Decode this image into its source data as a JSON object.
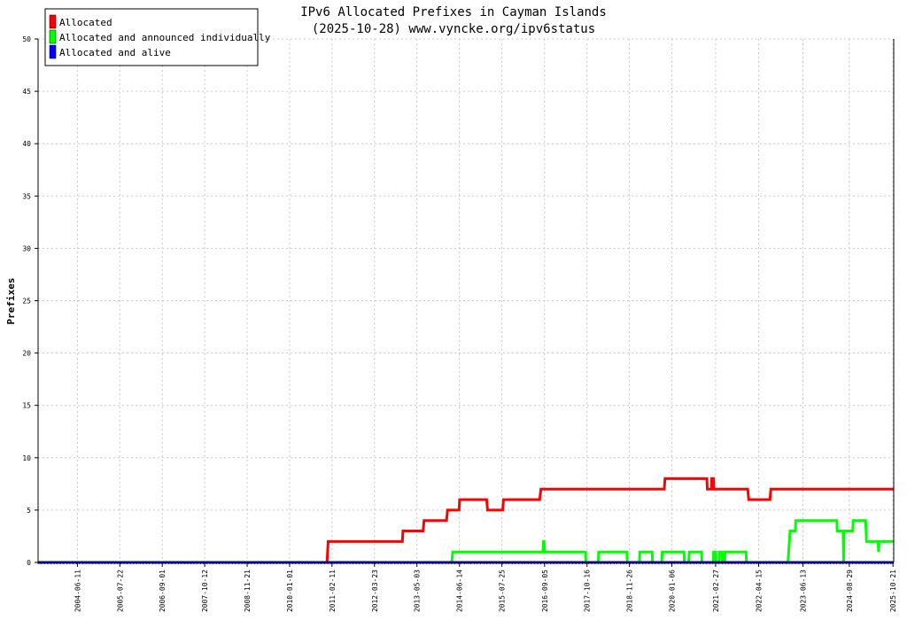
{
  "chart_data": {
    "type": "line",
    "title": "IPv6 Allocated Prefixes in Cayman Islands",
    "subtitle": "(2025-10-28) www.vyncke.org/ipv6status",
    "xlabel": "",
    "ylabel": "Prefixes",
    "ylim": [
      0,
      50
    ],
    "yticks": [
      0,
      5,
      10,
      15,
      20,
      25,
      30,
      35,
      40,
      45,
      50
    ],
    "xlim": [
      "2003-06-01",
      "2025-10-28"
    ],
    "xticks": [
      "2004-06-11",
      "2005-07-22",
      "2006-09-01",
      "2007-10-12",
      "2008-11-21",
      "2010-01-01",
      "2011-02-11",
      "2012-03-23",
      "2013-05-03",
      "2014-06-14",
      "2015-07-25",
      "2016-09-05",
      "2017-10-16",
      "2018-11-26",
      "2020-01-06",
      "2021-02-27",
      "2022-04-15",
      "2023-06-13",
      "2024-08-29",
      "2025-10-21"
    ],
    "grid": true,
    "legend_position": "top-left",
    "series": [
      {
        "name": "Allocated",
        "color": "#ff0000",
        "points": [
          [
            "2003-06-01",
            0
          ],
          [
            "2010-12-25",
            0
          ],
          [
            "2011-01-05",
            2
          ],
          [
            "2012-12-15",
            2
          ],
          [
            "2012-12-20",
            3
          ],
          [
            "2013-07-01",
            3
          ],
          [
            "2013-07-10",
            4
          ],
          [
            "2014-02-10",
            4
          ],
          [
            "2014-02-20",
            5
          ],
          [
            "2014-06-10",
            5
          ],
          [
            "2014-06-15",
            6
          ],
          [
            "2015-03-01",
            6
          ],
          [
            "2015-03-10",
            5
          ],
          [
            "2015-08-01",
            5
          ],
          [
            "2015-08-10",
            6
          ],
          [
            "2016-07-20",
            6
          ],
          [
            "2016-08-01",
            7
          ],
          [
            "2019-10-25",
            7
          ],
          [
            "2019-11-01",
            8
          ],
          [
            "2020-12-05",
            8
          ],
          [
            "2020-12-10",
            7
          ],
          [
            "2021-01-18",
            7
          ],
          [
            "2021-01-20",
            8
          ],
          [
            "2021-02-06",
            8
          ],
          [
            "2021-02-08",
            7
          ],
          [
            "2022-01-01",
            7
          ],
          [
            "2022-01-10",
            6
          ],
          [
            "2022-08-01",
            6
          ],
          [
            "2022-08-10",
            7
          ],
          [
            "2025-10-28",
            7
          ]
        ]
      },
      {
        "name": "Allocated and announced individually",
        "color": "#00ff00",
        "points": [
          [
            "2003-06-01",
            0
          ],
          [
            "2014-04-01",
            0
          ],
          [
            "2014-04-10",
            1
          ],
          [
            "2016-08-20",
            1
          ],
          [
            "2016-08-25",
            2
          ],
          [
            "2016-09-01",
            2
          ],
          [
            "2016-09-05",
            1
          ],
          [
            "2017-10-01",
            1
          ],
          [
            "2017-10-05",
            0
          ],
          [
            "2018-02-01",
            0
          ],
          [
            "2018-02-05",
            1
          ],
          [
            "2018-11-01",
            1
          ],
          [
            "2018-11-05",
            0
          ],
          [
            "2019-03-01",
            0
          ],
          [
            "2019-03-05",
            1
          ],
          [
            "2019-07-01",
            1
          ],
          [
            "2019-07-05",
            0
          ],
          [
            "2019-10-01",
            0
          ],
          [
            "2019-10-05",
            1
          ],
          [
            "2020-05-01",
            1
          ],
          [
            "2020-05-05",
            0
          ],
          [
            "2020-06-15",
            0
          ],
          [
            "2020-06-20",
            1
          ],
          [
            "2020-10-15",
            1
          ],
          [
            "2020-10-20",
            0
          ],
          [
            "2021-02-05",
            0
          ],
          [
            "2021-02-08",
            1
          ],
          [
            "2021-03-01",
            1
          ],
          [
            "2021-03-03",
            0
          ],
          [
            "2021-04-01",
            0
          ],
          [
            "2021-04-03",
            1
          ],
          [
            "2021-05-01",
            1
          ],
          [
            "2021-05-03",
            0
          ],
          [
            "2021-05-25",
            0
          ],
          [
            "2021-05-28",
            1
          ],
          [
            "2021-12-15",
            1
          ],
          [
            "2021-12-20",
            0
          ],
          [
            "2023-01-20",
            0
          ],
          [
            "2023-02-10",
            3
          ],
          [
            "2023-04-01",
            3
          ],
          [
            "2023-04-05",
            4
          ],
          [
            "2024-05-01",
            4
          ],
          [
            "2024-05-05",
            3
          ],
          [
            "2024-07-01",
            3
          ],
          [
            "2024-07-05",
            0
          ],
          [
            "2024-07-10",
            3
          ],
          [
            "2024-10-01",
            3
          ],
          [
            "2024-10-05",
            4
          ],
          [
            "2025-02-01",
            4
          ],
          [
            "2025-02-10",
            2
          ],
          [
            "2025-06-01",
            2
          ],
          [
            "2025-06-05",
            1
          ],
          [
            "2025-06-10",
            2
          ],
          [
            "2025-10-28",
            2
          ]
        ]
      },
      {
        "name": "Allocated and alive",
        "color": "#0000ff",
        "points": [
          [
            "2003-06-01",
            0
          ],
          [
            "2025-10-28",
            0
          ]
        ]
      }
    ]
  }
}
